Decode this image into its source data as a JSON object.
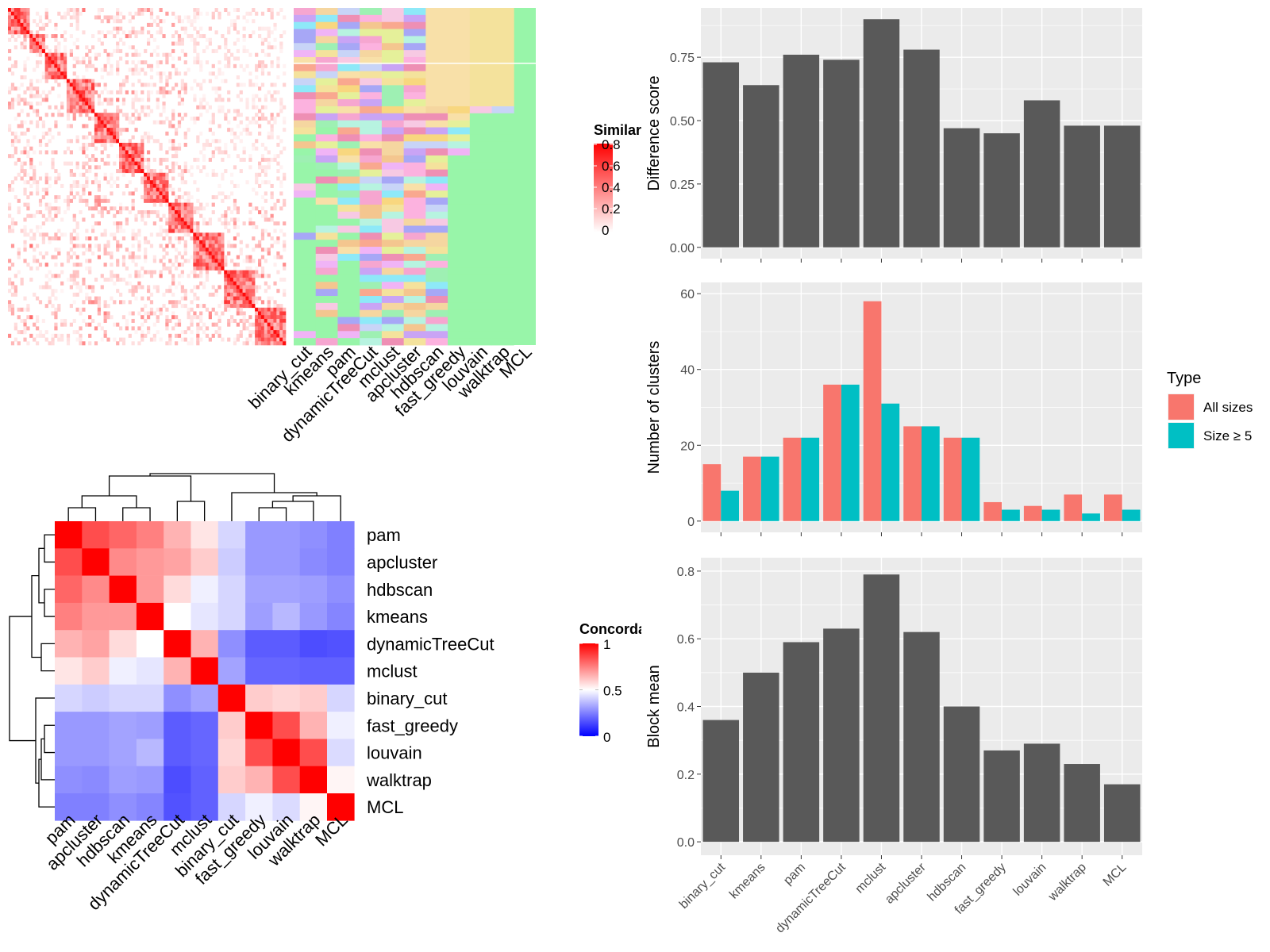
{
  "methods_order": [
    "binary_cut",
    "kmeans",
    "pam",
    "dynamicTreeCut",
    "mclust",
    "apcluster",
    "hdbscan",
    "fast_greedy",
    "louvain",
    "walktrap",
    "MCL"
  ],
  "similarity_heatmap": {
    "legend_title": "Similarity",
    "legend_ticks": [
      "0.8",
      "0.6",
      "0.4",
      "0.2",
      "0"
    ],
    "colors": {
      "low": "#ffffff",
      "high": "#ff0000"
    }
  },
  "concordance_heatmap": {
    "legend_title": "Concordance",
    "legend_ticks": [
      "1",
      "0.5",
      "0"
    ],
    "rows": [
      "pam",
      "apcluster",
      "hdbscan",
      "kmeans",
      "dynamicTreeCut",
      "mclust",
      "binary_cut",
      "fast_greedy",
      "louvain",
      "walktrap",
      "MCL"
    ],
    "colors": {
      "low": "#0000ff",
      "mid": "#ffffff",
      "high": "#ff0000"
    }
  },
  "chart_data": [
    {
      "type": "bar",
      "categories": [
        "binary_cut",
        "kmeans",
        "pam",
        "dynamicTreeCut",
        "mclust",
        "apcluster",
        "hdbscan",
        "fast_greedy",
        "louvain",
        "walktrap",
        "MCL"
      ],
      "values": [
        0.73,
        0.64,
        0.76,
        0.74,
        0.9,
        0.78,
        0.47,
        0.45,
        0.58,
        0.48,
        0.48
      ],
      "ylabel": "Difference score",
      "ylim": [
        0,
        0.9
      ],
      "yticks": [
        "0.00",
        "0.25",
        "0.50",
        "0.75"
      ],
      "grid": true
    },
    {
      "type": "bar",
      "categories": [
        "binary_cut",
        "kmeans",
        "pam",
        "dynamicTreeCut",
        "mclust",
        "apcluster",
        "hdbscan",
        "fast_greedy",
        "louvain",
        "walktrap",
        "MCL"
      ],
      "series": [
        {
          "name": "All sizes",
          "color": "#F8766D",
          "values": [
            15,
            17,
            22,
            36,
            58,
            25,
            22,
            5,
            4,
            7,
            7
          ]
        },
        {
          "name": "Size ≥ 5",
          "color": "#00BFC4",
          "values": [
            8,
            17,
            22,
            36,
            31,
            25,
            22,
            3,
            3,
            2,
            3
          ]
        }
      ],
      "ylabel": "Number of clusters",
      "ylim": [
        0,
        60
      ],
      "yticks": [
        "0",
        "20",
        "40",
        "60"
      ],
      "legend_title": "Type",
      "legend_position": "right",
      "grid": true
    },
    {
      "type": "bar",
      "categories": [
        "binary_cut",
        "kmeans",
        "pam",
        "dynamicTreeCut",
        "mclust",
        "apcluster",
        "hdbscan",
        "fast_greedy",
        "louvain",
        "walktrap",
        "MCL"
      ],
      "values": [
        0.36,
        0.5,
        0.59,
        0.63,
        0.79,
        0.62,
        0.4,
        0.27,
        0.29,
        0.23,
        0.17
      ],
      "ylabel": "Block mean",
      "ylim": [
        0,
        0.8
      ],
      "yticks": [
        "0.0",
        "0.2",
        "0.4",
        "0.6",
        "0.8"
      ],
      "grid": true
    }
  ]
}
